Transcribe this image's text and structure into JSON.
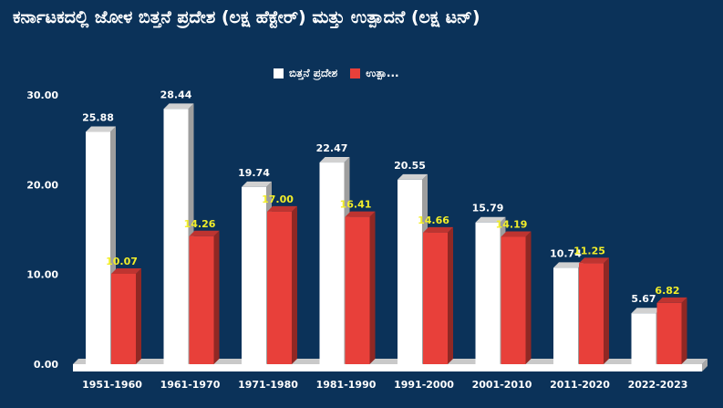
{
  "chart_data": {
    "type": "bar",
    "title": "ಕರ್ನಾಟಕದಲ್ಲಿ ಜೋಳ ಬಿತ್ತನೆ ಪ್ರದೇಶ (ಲಕ್ಷ ಹೆಕ್ಟೇರ್) ಮತ್ತು ಉತ್ಪಾದನೆ (ಲಕ್ಷ ಟನ್)",
    "categories": [
      "1951-1960",
      "1961-1970",
      "1971-1980",
      "1981-1990",
      "1991-2000",
      "2001-2010",
      "2011-2020",
      "2022-2023"
    ],
    "series": [
      {
        "name": "ಬಿತ್ತನೆ ಪ್ರದೇಶ",
        "color": "#ffffff",
        "label_color": "#ffffff",
        "values": [
          25.88,
          28.44,
          19.74,
          22.47,
          20.55,
          15.79,
          10.74,
          5.67
        ],
        "labels": [
          "25.88",
          "28.44",
          "19.74",
          "22.47",
          "20.55",
          "15.79",
          "10.74",
          "5.67"
        ]
      },
      {
        "name": "ಉತ್ಪಾ...",
        "color": "#e8403a",
        "label_color": "#f2ee2a",
        "values": [
          10.07,
          14.26,
          17.0,
          16.41,
          14.66,
          14.19,
          11.25,
          6.82
        ],
        "labels": [
          "10.07",
          "14.26",
          "17.00",
          "16.41",
          "14.66",
          "14.19",
          "11.25",
          "6.82"
        ]
      }
    ],
    "y_ticks": [
      "0.00",
      "10.00",
      "20.00",
      "30.00"
    ],
    "ylim": [
      0,
      30
    ],
    "grid": false,
    "legend_position": "top-center",
    "xlabel": "",
    "ylabel": ""
  }
}
